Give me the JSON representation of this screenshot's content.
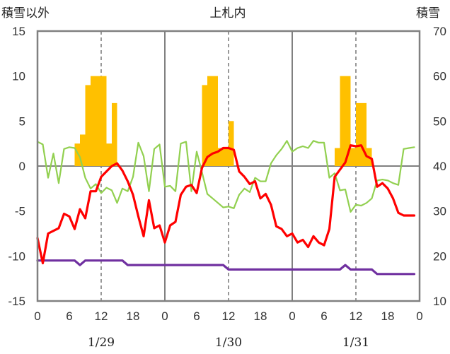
{
  "chart_data": {
    "type": "bar+line",
    "title": "上札内",
    "ylabel_left": "積雪以外",
    "ylabel_right": "積雪",
    "ylim_left": [
      -15,
      15
    ],
    "ylim_right": [
      10,
      70
    ],
    "yticks_left": [
      "15",
      "10",
      "5",
      "0",
      "-5",
      "-10",
      "-15"
    ],
    "yticks_right": [
      "70",
      "60",
      "50",
      "40",
      "30",
      "20",
      "10"
    ],
    "x_range": [
      0,
      72
    ],
    "xtick_labels": [
      "0",
      "6",
      "12",
      "18",
      "0",
      "6",
      "12",
      "18",
      "0",
      "6",
      "12",
      "18",
      "0"
    ],
    "dates": [
      "1/29",
      "1/30",
      "1/31"
    ],
    "grid": "dashed vertical at 12h, solid vertical at day boundaries, solid horizontal at 0",
    "colors": {
      "snow_bar": "#ffc000",
      "temperature": "#ff0000",
      "secondary_line": "#92d050",
      "pressure_like": "#7030a0",
      "frame": "#808080"
    },
    "bar_series": {
      "name": "積雪",
      "axis": "right",
      "x": [
        7.5,
        8.5,
        9.5,
        10.5,
        11.5,
        12.5,
        13.5,
        14.5,
        15.5,
        31.5,
        32.5,
        33.5,
        34.5,
        35.5,
        36.5,
        56.5,
        57.5,
        58.5,
        59.5,
        60.5,
        61.5,
        62.5,
        63.5
      ],
      "values": [
        45,
        47,
        58,
        60,
        60,
        60,
        45,
        54,
        40,
        58,
        60,
        60,
        44,
        44,
        50,
        44,
        60,
        60,
        44,
        54,
        54,
        44,
        40
      ]
    },
    "line_series": [
      {
        "axis": "left",
        "color": "#ff0000",
        "x": [
          0,
          1,
          2,
          3,
          4,
          5,
          6,
          7,
          8,
          9,
          10,
          11,
          12,
          13,
          14,
          15,
          16,
          17,
          18,
          19,
          20,
          21,
          22,
          23,
          24,
          25,
          26,
          27,
          28,
          29,
          30,
          31,
          32,
          33,
          34,
          35,
          36,
          37,
          38,
          39,
          40,
          41,
          42,
          43,
          44,
          45,
          46,
          47,
          48,
          49,
          50,
          51,
          52,
          53,
          54,
          55,
          56,
          57,
          58,
          59,
          60,
          61,
          62,
          63,
          64,
          65,
          66,
          67,
          68,
          69,
          70,
          71
        ],
        "values": [
          -8,
          -10.8,
          -7.5,
          -7.2,
          -6.9,
          -5.3,
          -5.6,
          -7.0,
          -4.8,
          -5.8,
          -2.8,
          -2.8,
          -1.2,
          -0.6,
          0.0,
          0.3,
          -0.5,
          -1.7,
          -3.2,
          -5.6,
          -7.8,
          -3.8,
          -6.9,
          -6.6,
          -8.5,
          -6.6,
          -6.2,
          -3.2,
          -2.3,
          -2.1,
          -3.0,
          -0.2,
          1.0,
          1.4,
          1.6,
          2.0,
          2.0,
          1.8,
          -0.6,
          -1.2,
          -2.0,
          -1.7,
          -3.6,
          -3.1,
          -4.3,
          -6.7,
          -7.0,
          -7.8,
          -7.5,
          -8.5,
          -8.2,
          -9.0,
          -7.8,
          -8.5,
          -8.8,
          -7.0,
          -1.2,
          -0.4,
          0.4,
          2.3,
          2.2,
          2.3,
          1.1,
          0.8,
          -2.3,
          -1.9,
          -2.5,
          -3.6,
          -5.2,
          -5.5,
          -5.5,
          -5.5
        ]
      },
      {
        "axis": "left",
        "color": "#92d050",
        "x": [
          0,
          1,
          2,
          3,
          4,
          5,
          6,
          7,
          8,
          9,
          10,
          11,
          12,
          13,
          14,
          15,
          16,
          17,
          18,
          19,
          20,
          21,
          22,
          23,
          24,
          25,
          26,
          27,
          28,
          29,
          30,
          31,
          32,
          33,
          34,
          35,
          36,
          37,
          38,
          39,
          40,
          41,
          42,
          43,
          44,
          45,
          46,
          47,
          48,
          49,
          50,
          51,
          52,
          53,
          54,
          55,
          56,
          57,
          58,
          59,
          60,
          61,
          62,
          63,
          64,
          65,
          66,
          67,
          68,
          69,
          70,
          71
        ],
        "values": [
          2.7,
          2.4,
          -1.3,
          1.4,
          -1.9,
          1.9,
          2.1,
          2.0,
          1.0,
          -1.3,
          -2.5,
          -2.0,
          -3.0,
          -2.4,
          -2.7,
          -4.1,
          -2.5,
          -2.8,
          -1.2,
          2.6,
          1.1,
          -2.8,
          1.9,
          2.4,
          -2.3,
          -2.2,
          -2.8,
          2.5,
          2.7,
          -2.8,
          1.6,
          -0.7,
          -3.1,
          -3.6,
          -4.1,
          -4.6,
          -4.5,
          -4.7,
          -3.2,
          -2.5,
          -2.9,
          -1.3,
          -1.7,
          -1.7,
          0.3,
          1.2,
          1.9,
          2.8,
          1.6,
          2.0,
          2.2,
          2.0,
          2.8,
          2.6,
          2.6,
          -1.3,
          -0.8,
          -2.7,
          -2.6,
          -5.1,
          -4.3,
          -4.4,
          -4.1,
          -3.6,
          -1.6,
          -1.5,
          -1.6,
          -1.9,
          -2.1,
          1.9,
          2.0,
          2.1
        ]
      },
      {
        "axis": "left",
        "color": "#7030a0",
        "x": [
          0,
          1,
          2,
          3,
          4,
          5,
          6,
          7,
          8,
          9,
          10,
          11,
          12,
          13,
          14,
          15,
          16,
          17,
          18,
          19,
          20,
          21,
          22,
          23,
          24,
          25,
          26,
          27,
          28,
          29,
          30,
          31,
          32,
          33,
          34,
          35,
          36,
          37,
          38,
          39,
          40,
          41,
          42,
          43,
          44,
          45,
          46,
          47,
          48,
          49,
          50,
          51,
          52,
          53,
          54,
          55,
          56,
          57,
          58,
          59,
          60,
          61,
          62,
          63,
          64,
          65,
          66,
          67,
          68,
          69,
          70,
          71
        ],
        "values": [
          -10.5,
          -10.5,
          -10.5,
          -10.5,
          -10.5,
          -10.5,
          -10.5,
          -10.5,
          -11.0,
          -10.5,
          -10.5,
          -10.5,
          -10.5,
          -10.5,
          -10.5,
          -10.5,
          -10.5,
          -11.0,
          -11.0,
          -11.0,
          -11.0,
          -11.0,
          -11.0,
          -11.0,
          -11.0,
          -11.0,
          -11.0,
          -11.0,
          -11.0,
          -11.0,
          -11.0,
          -11.0,
          -11.0,
          -11.0,
          -11.0,
          -11.0,
          -11.5,
          -11.5,
          -11.5,
          -11.5,
          -11.5,
          -11.5,
          -11.5,
          -11.5,
          -11.5,
          -11.5,
          -11.5,
          -11.5,
          -11.5,
          -11.5,
          -11.5,
          -11.5,
          -11.5,
          -11.5,
          -11.5,
          -11.5,
          -11.5,
          -11.5,
          -11.0,
          -11.5,
          -11.5,
          -11.5,
          -11.5,
          -11.5,
          -12.0,
          -12.0,
          -12.0,
          -12.0,
          -12.0,
          -12.0,
          -12.0,
          -12.0
        ]
      }
    ]
  }
}
